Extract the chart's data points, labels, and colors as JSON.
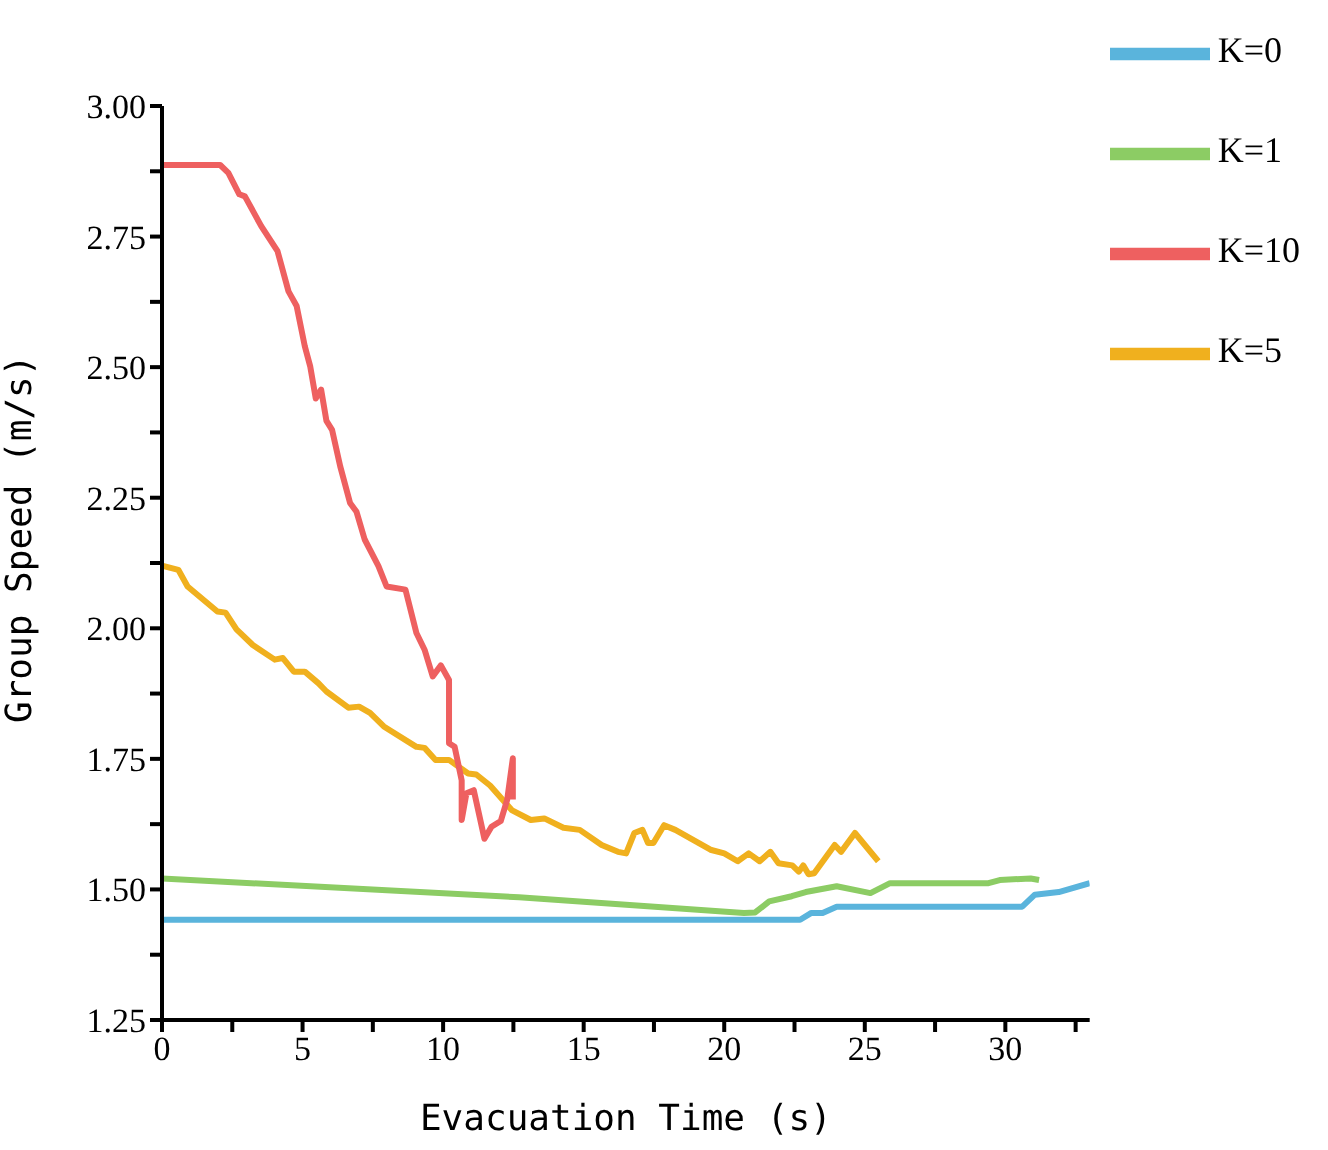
{
  "chart_data": {
    "type": "line",
    "xlabel": "Evacuation Time (s)",
    "ylabel": "Group Speed (m/s)",
    "xlim": [
      0,
      33
    ],
    "xticks": [
      0,
      {
        "value": 2.5,
        "label": null
      },
      5,
      {
        "value": 7.5,
        "label": null
      },
      10,
      {
        "value": 12.5,
        "label": null
      },
      15,
      {
        "value": 17.5,
        "label": null
      },
      20,
      {
        "value": 22.5,
        "label": null
      },
      25,
      {
        "value": 27.5,
        "label": null
      },
      30,
      {
        "value": 32.5,
        "label": null
      }
    ],
    "ylim": [
      1.25,
      3.0
    ],
    "yticks": [
      {
        "value": 1.25,
        "label": "1.25"
      },
      {
        "value": 1.375,
        "label": null
      },
      {
        "value": 1.5,
        "label": "1.50"
      },
      {
        "value": 1.625,
        "label": null
      },
      {
        "value": 1.75,
        "label": "1.75"
      },
      {
        "value": 1.875,
        "label": null
      },
      {
        "value": 2.0,
        "label": "2.00"
      },
      {
        "value": 2.125,
        "label": null
      },
      {
        "value": 2.25,
        "label": "2.25"
      },
      {
        "value": 2.375,
        "label": null
      },
      {
        "value": 2.5,
        "label": "2.50"
      },
      {
        "value": 2.625,
        "label": null
      },
      {
        "value": 2.75,
        "label": "2.75"
      },
      {
        "value": 2.875,
        "label": null
      },
      {
        "value": 3.0,
        "label": "3.00"
      }
    ],
    "grid": false,
    "legend": "top right",
    "marker": "none",
    "line_style": "solid",
    "series": [
      {
        "name": "K=0",
        "color": "#5ab4dc",
        "x": [
          0,
          22.7,
          23.1,
          23.5,
          24.0,
          30.6,
          31.05,
          31.9,
          33.0
        ],
        "values": [
          1.442,
          1.442,
          1.455,
          1.455,
          1.467,
          1.467,
          1.49,
          1.495,
          1.512
        ]
      },
      {
        "name": "K=1",
        "color": "#8ccc64",
        "x": [
          0,
          12.7,
          20.7,
          21.1,
          21.6,
          22.4,
          22.9,
          24.0,
          25.2,
          25.9,
          27.7,
          29.4,
          29.8,
          30.9,
          31.2
        ],
        "values": [
          1.521,
          1.485,
          1.455,
          1.456,
          1.477,
          1.487,
          1.495,
          1.506,
          1.493,
          1.512,
          1.512,
          1.512,
          1.518,
          1.521,
          1.518
        ]
      },
      {
        "name": "K=5",
        "color": "#f0b01e",
        "x": [
          0,
          0.58,
          0.91,
          1.97,
          2.26,
          2.65,
          3.23,
          4.01,
          4.3,
          4.69,
          5.08,
          5.56,
          5.85,
          6.63,
          7.01,
          7.4,
          7.89,
          9.05,
          9.34,
          9.73,
          10.21,
          10.89,
          11.18,
          11.67,
          12.44,
          13.12,
          13.6,
          14.28,
          14.86,
          15.64,
          16.22,
          16.51,
          16.8,
          17.09,
          17.29,
          17.48,
          17.86,
          18.26,
          19.51,
          20.0,
          20.48,
          20.87,
          21.26,
          21.64,
          21.93,
          22.42,
          22.65,
          22.81,
          23.0,
          23.2,
          23.93,
          24.16,
          24.65,
          25.48
        ],
        "values": [
          2.12,
          2.112,
          2.08,
          2.032,
          2.03,
          1.998,
          1.968,
          1.94,
          1.943,
          1.917,
          1.917,
          1.895,
          1.879,
          1.848,
          1.85,
          1.838,
          1.812,
          1.773,
          1.771,
          1.748,
          1.748,
          1.722,
          1.72,
          1.699,
          1.652,
          1.633,
          1.636,
          1.618,
          1.614,
          1.585,
          1.572,
          1.569,
          1.608,
          1.614,
          1.589,
          1.589,
          1.623,
          1.614,
          1.576,
          1.569,
          1.554,
          1.569,
          1.554,
          1.572,
          1.55,
          1.546,
          1.534,
          1.546,
          1.529,
          1.531,
          1.585,
          1.572,
          1.608,
          1.554
        ]
      },
      {
        "name": "K=10",
        "color": "#ee6060",
        "x": [
          0,
          2.07,
          2.36,
          2.75,
          2.95,
          3.53,
          4.11,
          4.5,
          4.79,
          5.08,
          5.27,
          5.47,
          5.66,
          5.85,
          6.05,
          6.34,
          6.69,
          6.92,
          7.21,
          7.7,
          7.99,
          8.66,
          9.05,
          9.34,
          9.63,
          9.92,
          10.21,
          10.21,
          10.41,
          10.66,
          10.66,
          10.83,
          11.09,
          11.47,
          11.72,
          12.05,
          12.28,
          12.48,
          12.48
        ],
        "values": [
          2.887,
          2.887,
          2.872,
          2.831,
          2.827,
          2.77,
          2.722,
          2.645,
          2.617,
          2.54,
          2.502,
          2.44,
          2.457,
          2.397,
          2.38,
          2.31,
          2.24,
          2.223,
          2.17,
          2.119,
          2.08,
          2.074,
          1.991,
          1.959,
          1.908,
          1.929,
          1.901,
          1.78,
          1.773,
          1.709,
          1.633,
          1.684,
          1.69,
          1.597,
          1.62,
          1.631,
          1.672,
          1.751,
          1.672
        ]
      }
    ]
  }
}
